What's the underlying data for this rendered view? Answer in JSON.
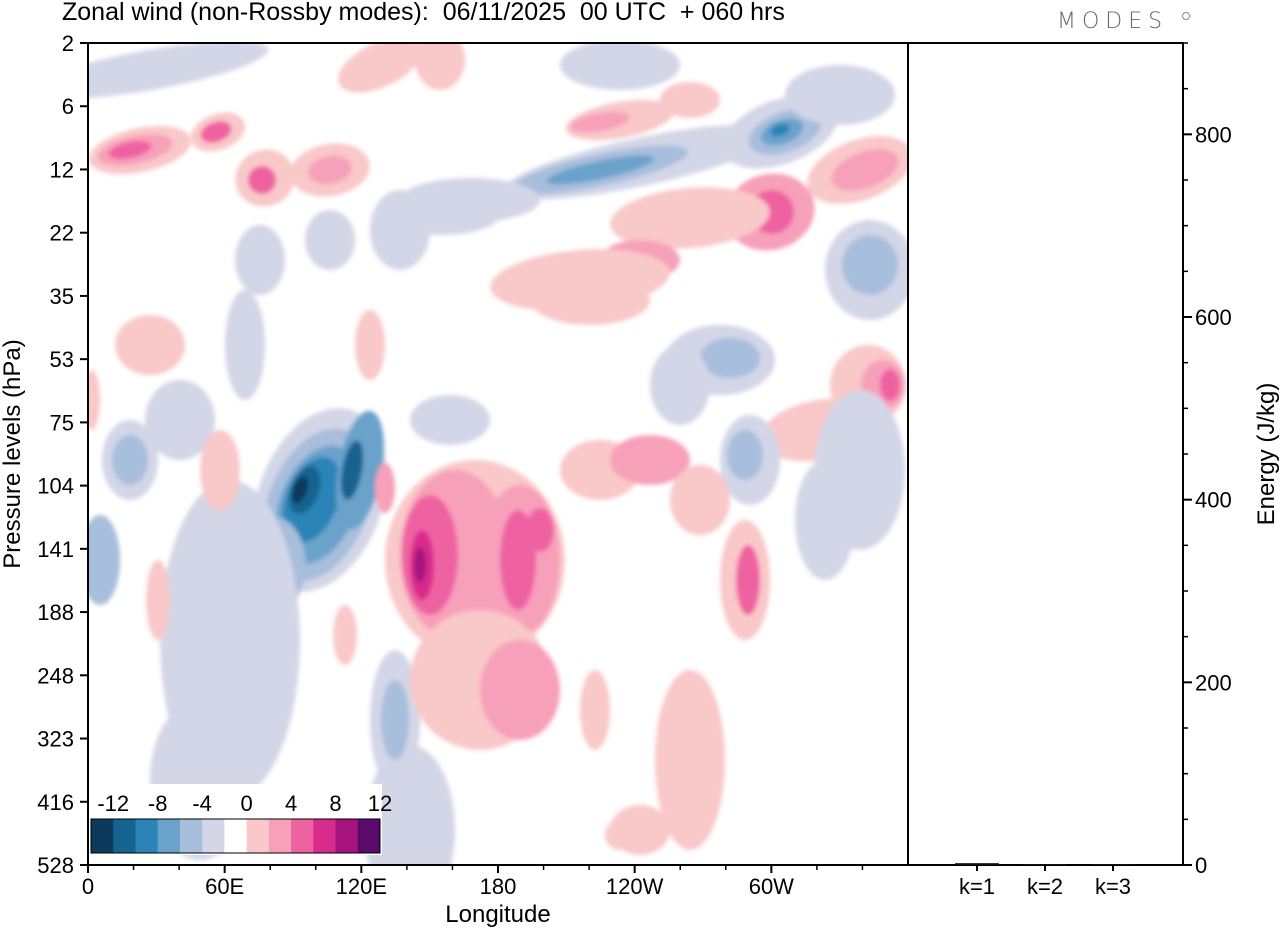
{
  "title": "Zonal wind (non-Rossby modes):  06/11/2025  00 UTC  + 060 hrs",
  "logo": "MODES",
  "chart_data": [
    {
      "type": "heatmap",
      "name": "zonal-wind-hovmoller",
      "xlabel": "Longitude",
      "ylabel": "Pressure levels (hPa)",
      "x_ticks": [
        "0",
        "60E",
        "120E",
        "180",
        "120W",
        "60W"
      ],
      "x_tick_values": [
        0,
        60,
        120,
        180,
        240,
        300
      ],
      "x_range": [
        0,
        360
      ],
      "y_ticks": [
        "2",
        "6",
        "12",
        "22",
        "35",
        "53",
        "75",
        "104",
        "141",
        "188",
        "248",
        "323",
        "416",
        "528"
      ],
      "colorbar": {
        "tick_labels": [
          "-12",
          "-8",
          "-4",
          "0",
          "4",
          "8",
          "12"
        ],
        "levels": [
          -14,
          -12,
          -10,
          -8,
          -6,
          -4,
          -2,
          2,
          4,
          6,
          8,
          10,
          12,
          14
        ],
        "colors": [
          "#0c3a5c",
          "#15648f",
          "#2a84b8",
          "#6aa2cc",
          "#a7bedc",
          "#d3d6e7",
          "#ffffff",
          "#f9c8c8",
          "#f7a0b9",
          "#ef62a2",
          "#d92b8c",
          "#a6127e",
          "#5a0a6b"
        ]
      },
      "features": [
        {
          "label": "easterly core",
          "lon": 98,
          "level": "104-141",
          "value": -14
        },
        {
          "label": "westerly core",
          "lon": 145,
          "level": "141-188",
          "value": 12
        },
        {
          "label": "easterly core",
          "lon": 300,
          "level": "6-12",
          "value": -12
        },
        {
          "label": "westerly core",
          "lon": 305,
          "level": "12-22",
          "value": 8
        },
        {
          "label": "westerly core",
          "lon": 350,
          "level": "53-75",
          "value": 8
        }
      ]
    },
    {
      "type": "bar",
      "name": "energy-by-wavenumber",
      "ylabel": "Energy (J/kg)",
      "categories": [
        "k=1",
        "k=2",
        "k=3"
      ],
      "values": [
        2,
        1,
        1
      ],
      "y_ticks": [
        "0",
        "200",
        "400",
        "600",
        "800"
      ],
      "ylim": [
        0,
        900
      ]
    }
  ]
}
